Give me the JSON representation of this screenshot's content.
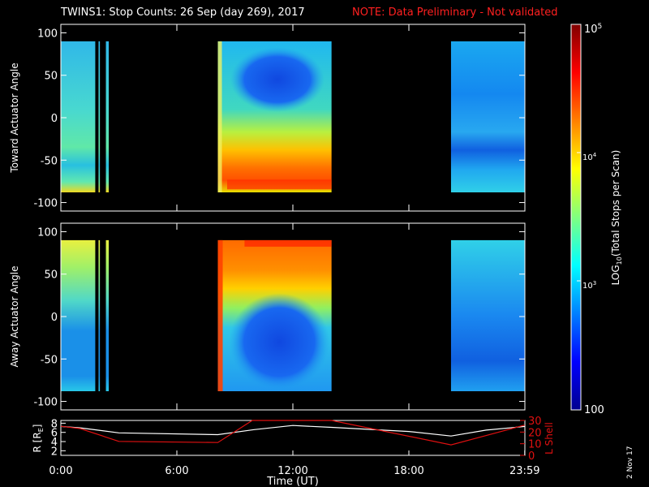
{
  "title": "TWINS1: Stop Counts: 26 Sep (day 269), 2017",
  "note": "NOTE: Data Preliminary - Not validated",
  "date_stamp": "2 Nov 17",
  "colors": {
    "background": "#000000",
    "axes": "#ffffff",
    "note": "#ff2020",
    "rshell": "#ffffff",
    "lshell": "#e01010"
  },
  "chart_data": [
    {
      "type": "heatmap",
      "panel": "top",
      "ylabel": "Toward Actuator Angle",
      "ylim": [
        -110,
        110
      ],
      "yticks": [
        "100",
        "50",
        "0",
        "-50",
        "-100"
      ],
      "data_angle_range": [
        -88,
        90
      ],
      "xlim": [
        0,
        24
      ],
      "data_intervals_hours": [
        [
          0.0,
          1.78
        ],
        [
          1.95,
          2.02
        ],
        [
          2.33,
          2.48
        ],
        [
          8.12,
          14.0
        ],
        [
          20.18,
          24.0
        ]
      ],
      "approx_log10_counts": {
        "quiet_intervals": 3.0,
        "active_interval_low_angles": 4.6,
        "active_interval_depletion": 2.6
      }
    },
    {
      "type": "heatmap",
      "panel": "middle",
      "ylabel": "Away Actuator Angle",
      "ylim": [
        -110,
        110
      ],
      "yticks": [
        "100",
        "50",
        "0",
        "-50",
        "-100"
      ],
      "data_angle_range": [
        -88,
        90
      ],
      "xlim": [
        0,
        24
      ],
      "data_intervals_hours": [
        [
          0.0,
          1.78
        ],
        [
          1.95,
          2.02
        ],
        [
          2.33,
          2.48
        ],
        [
          8.12,
          14.0
        ],
        [
          20.18,
          24.0
        ]
      ],
      "approx_log10_counts": {
        "quiet_intervals": 3.0,
        "active_interval_high_angles": 4.6,
        "active_interval_depletion": 2.6
      }
    },
    {
      "type": "line",
      "panel": "bottom",
      "xlabel": "Time (UT)",
      "xticks": [
        "0:00",
        "6:00",
        "12:00",
        "18:00",
        "23:59"
      ],
      "xlim": [
        0,
        24
      ],
      "ylabel_left": "R [R",
      "ylabel_left_sub": "E",
      "ylabel_left_close": "]",
      "yticks_left": [
        "8",
        "6",
        "4",
        "2"
      ],
      "ylim_left": [
        1,
        8.6
      ],
      "ylabel_right": "L Shell",
      "yticks_right": [
        "30",
        "20",
        "10",
        "0"
      ],
      "ylim_right": [
        0,
        30
      ],
      "series": [
        {
          "axis": "left",
          "x": [
            0,
            1,
            3,
            8.12,
            10,
            12,
            14,
            18,
            20.18,
            22,
            23.99
          ],
          "values": [
            7.3,
            7.0,
            5.9,
            5.5,
            6.6,
            7.5,
            7.1,
            6.2,
            5.2,
            6.5,
            7.3
          ]
        },
        {
          "axis": "right",
          "x": [
            0,
            1,
            3,
            8.12,
            9.9,
            14.0,
            20.18,
            22,
            23.99
          ],
          "values": [
            25,
            23,
            12,
            11,
            30,
            30,
            9,
            17,
            26
          ]
        }
      ]
    }
  ],
  "colorbar": {
    "label": "LOG",
    "label_sub": "10",
    "label_rest": "(Total Stops per Scan)",
    "log_min": 2,
    "log_max": 5,
    "tick_top_base": "10",
    "tick_top_exp": "5",
    "tick_mid_base": "10",
    "tick_mid_exp": "4",
    "tick_low_base": "10",
    "tick_low_exp": "3",
    "tick_bottom": "100"
  }
}
